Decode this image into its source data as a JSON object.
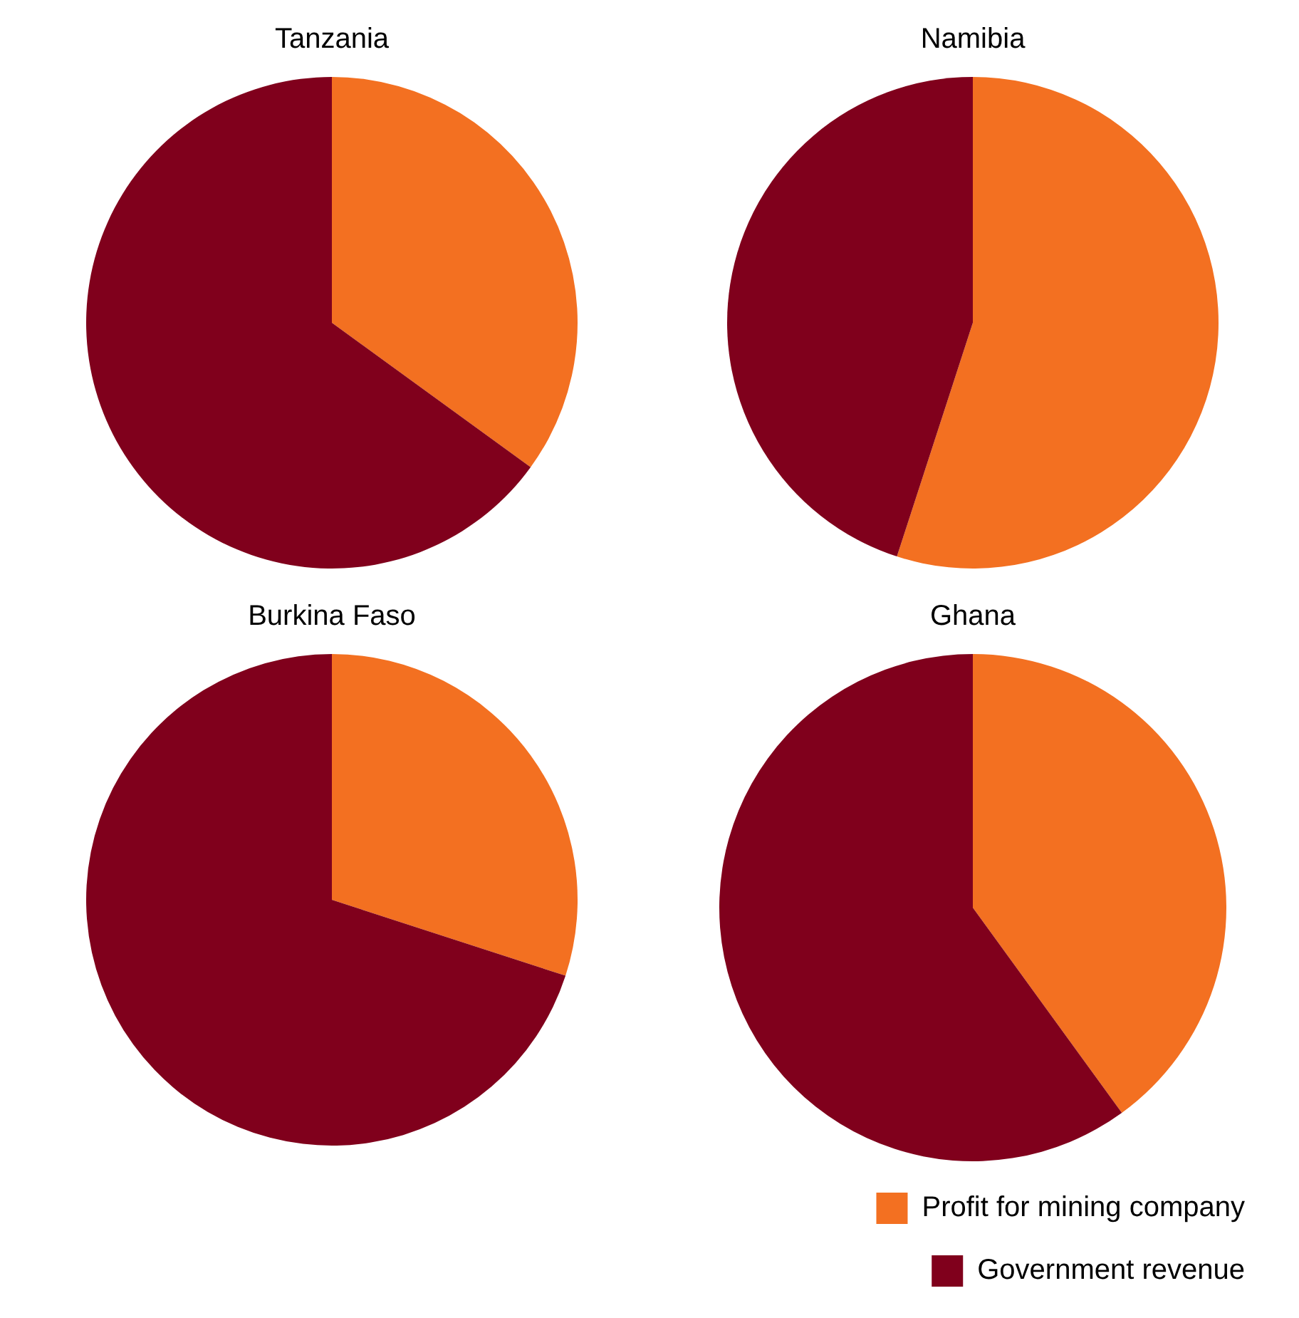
{
  "chart_data": [
    {
      "type": "pie",
      "title": "Tanzania",
      "categories": [
        null,
        null
      ],
      "values": [
        35,
        65
      ],
      "colors": [
        "#f37021",
        "#80001c"
      ],
      "legend": false
    },
    {
      "type": "pie",
      "title": "Namibia",
      "categories": [
        null,
        null
      ],
      "values": [
        55,
        45
      ],
      "colors": [
        "#f37021",
        "#80001c"
      ],
      "legend": false
    },
    {
      "type": "pie",
      "title": "Burkina Faso",
      "categories": [
        null,
        null
      ],
      "values": [
        30,
        70
      ],
      "colors": [
        "#f37021",
        "#80001c"
      ],
      "legend": false
    },
    {
      "type": "pie",
      "title": "Ghana",
      "categories": [
        "Profit for mining company",
        "Government revenue"
      ],
      "values": [
        40,
        60
      ],
      "colors": [
        "#f37021",
        "#80001c"
      ],
      "legend": "bottom right"
    }
  ]
}
